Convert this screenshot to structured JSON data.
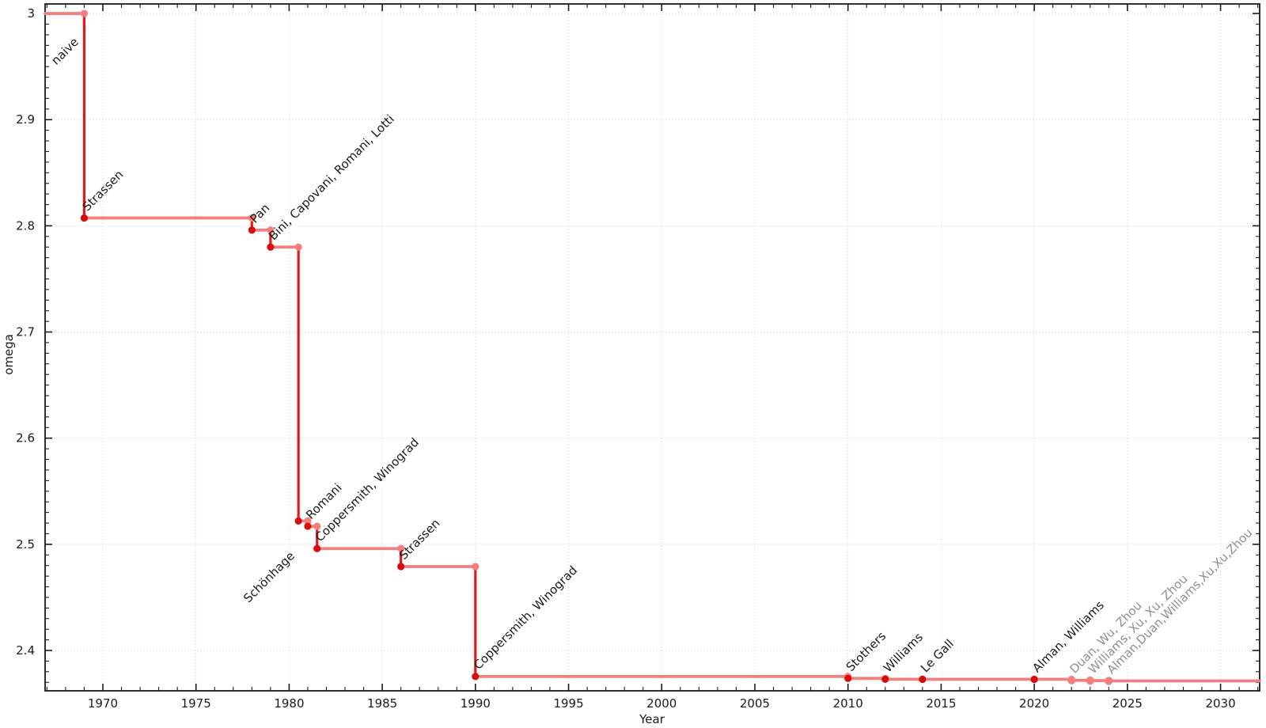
{
  "colors": {
    "step_flat": "#f47e7e",
    "step_drop": "#e81717",
    "point_confirmed": "#d60d0d",
    "point_provisional": "#f47e7e",
    "label_confirmed": "#1a1a1a",
    "label_provisional": "#8f8f8f",
    "grid": "#dadada",
    "frame": "#1a1a1a",
    "tick_label": "#1a1a1a"
  },
  "chart_data": {
    "type": "line",
    "subtype": "step-post-drop",
    "title": "",
    "xlabel": "Year",
    "ylabel": "omega",
    "xlim": [
      1966.9,
      2032.1
    ],
    "ylim": [
      2.362,
      3.009
    ],
    "grid": "dotted-at-major-ticks",
    "legend": "none",
    "x_axis": {
      "minor_step": 1,
      "major_ticks": [
        {
          "v": 1970,
          "label": "1970"
        },
        {
          "v": 1975,
          "label": "1975"
        },
        {
          "v": 1980,
          "label": "1980"
        },
        {
          "v": 1985,
          "label": "1985"
        },
        {
          "v": 1990,
          "label": "1990"
        },
        {
          "v": 1995,
          "label": "1995"
        },
        {
          "v": 2000,
          "label": "2000"
        },
        {
          "v": 2005,
          "label": "2005"
        },
        {
          "v": 2010,
          "label": "2010"
        },
        {
          "v": 2015,
          "label": "2015"
        },
        {
          "v": 2020,
          "label": "2020"
        },
        {
          "v": 2025,
          "label": "2025"
        },
        {
          "v": 2030,
          "label": "2030"
        }
      ]
    },
    "y_axis": {
      "minor_step": 0.01,
      "major_ticks": [
        {
          "v": 2.4,
          "label": "2.4"
        },
        {
          "v": 2.5,
          "label": "2.5"
        },
        {
          "v": 2.6,
          "label": "2.6"
        },
        {
          "v": 2.7,
          "label": "2.7"
        },
        {
          "v": 2.8,
          "label": "2.8"
        },
        {
          "v": 2.9,
          "label": "2.9"
        },
        {
          "v": 3.0,
          "label": "3"
        }
      ]
    },
    "start": {
      "omega": 3.0,
      "note": "line starts at left plot edge"
    },
    "points": [
      {
        "year": 1969,
        "omega": 2.8074,
        "label": "Strassen",
        "provisional": false
      },
      {
        "year": 1978,
        "omega": 2.796,
        "label": "Pan",
        "provisional": false
      },
      {
        "year": 1979,
        "omega": 2.78,
        "label": "Bini, Capovani, Romani, Lotti",
        "provisional": false
      },
      {
        "year": 1980.5,
        "omega": 2.522,
        "label": "Schönhage",
        "provisional": false,
        "label_offset": [
          -63,
          104
        ]
      },
      {
        "year": 1981,
        "omega": 2.517,
        "label": "Romani",
        "provisional": false
      },
      {
        "year": 1981.5,
        "omega": 2.496,
        "label": "Coppersmith, Winograd",
        "provisional": false
      },
      {
        "year": 1986,
        "omega": 2.479,
        "label": "Strassen",
        "provisional": false
      },
      {
        "year": 1990,
        "omega": 2.3755,
        "label": "Coppersmith, Winograd",
        "provisional": false
      },
      {
        "year": 2010,
        "omega": 2.3737,
        "label": "Stothers",
        "provisional": false
      },
      {
        "year": 2012,
        "omega": 2.3729,
        "label": "Williams",
        "provisional": false
      },
      {
        "year": 2014,
        "omega": 2.3728,
        "label": "Le Gall",
        "provisional": false
      },
      {
        "year": 2020,
        "omega": 2.3728,
        "label": "Alman, Williams",
        "provisional": false
      },
      {
        "year": 2022,
        "omega": 2.3719,
        "label": "Duan, Wu, Zhou",
        "provisional": true
      },
      {
        "year": 2023,
        "omega": 2.3716,
        "label": "Williams, Xu, Xu, Zhou",
        "provisional": true
      },
      {
        "year": 2024,
        "omega": 2.3713,
        "label": "Alman,Duan,Williams,Xu,Xu,Zhou",
        "provisional": true
      }
    ],
    "annotations": [
      {
        "text": "naive",
        "year": 1967.5,
        "omega": 2.951,
        "provisional": false
      }
    ]
  }
}
